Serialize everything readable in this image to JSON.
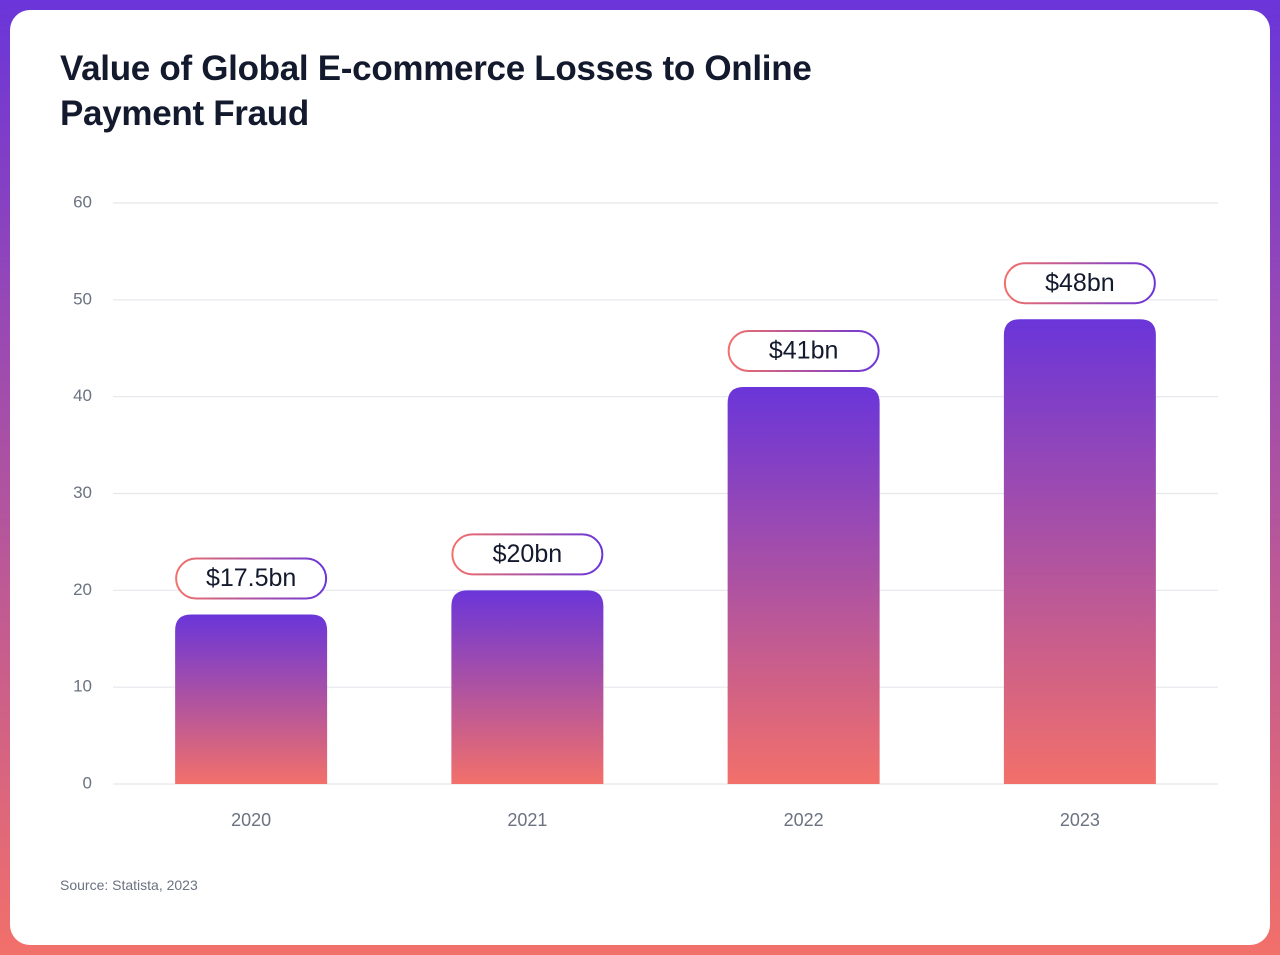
{
  "chart_data": {
    "type": "bar",
    "title": "Value of Global E-commerce Losses to Online Payment Fraud",
    "categories": [
      "2020",
      "2021",
      "2022",
      "2023"
    ],
    "values": [
      17.5,
      20,
      41,
      48
    ],
    "value_labels": [
      "$17.5bn",
      "$20bn",
      "$41bn",
      "$48bn"
    ],
    "colors": [
      "#6a35d9",
      "#f2706a"
    ],
    "ylim": [
      0,
      60
    ],
    "yticks": [
      0,
      10,
      20,
      30,
      40,
      50,
      60
    ],
    "grid": true,
    "source": "Source: Statista, 2023"
  }
}
